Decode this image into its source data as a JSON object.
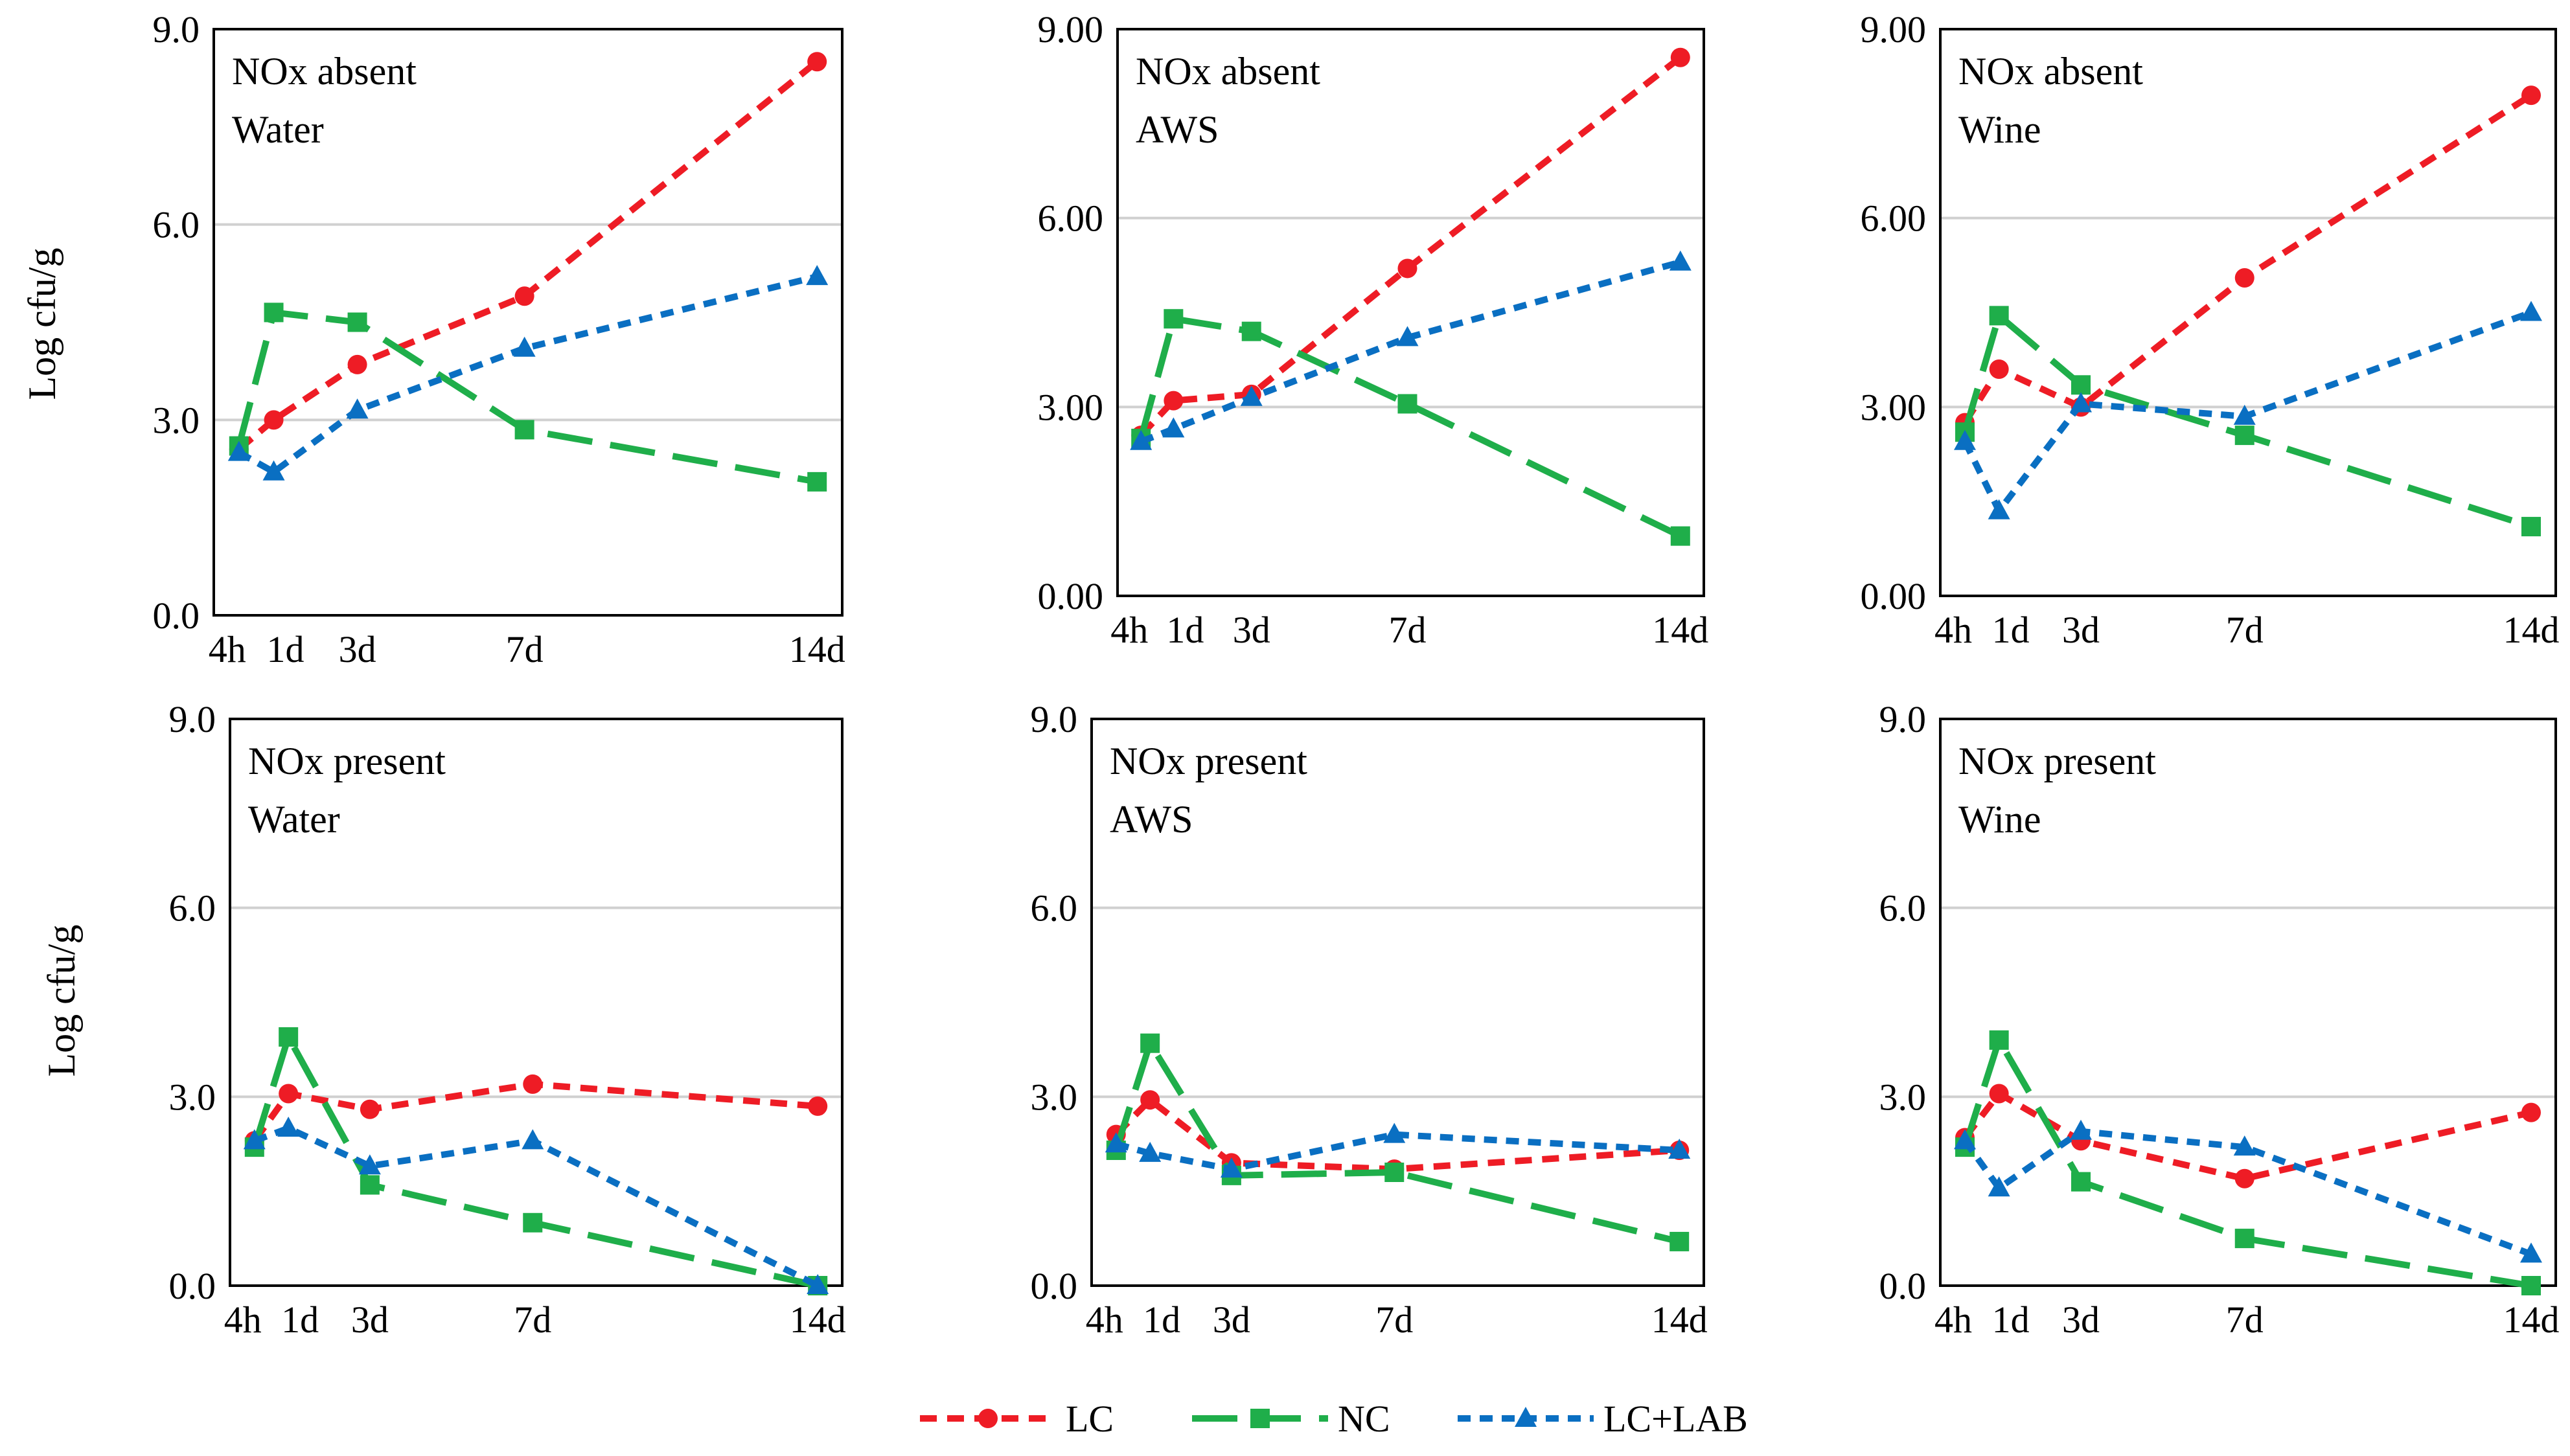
{
  "figure": {
    "y_axis_label": "Log cfu/g"
  },
  "legend": [
    {
      "name": "LC",
      "label": "LC",
      "color": "#ee1c25",
      "dash": "short",
      "marker": "circle"
    },
    {
      "name": "NC",
      "label": "NC",
      "color": "#1fae4a",
      "dash": "long",
      "marker": "square"
    },
    {
      "name": "LC+LAB",
      "label": "LC+LAB",
      "color": "#0a6fc2",
      "dash": "dot",
      "marker": "triangle"
    }
  ],
  "chart_data": [
    {
      "type": "line",
      "panel": "top-left",
      "annotation": [
        "NOx absent",
        "Water"
      ],
      "ylabel": "Log cfu/g",
      "ylim": [
        0,
        9
      ],
      "yticks": [
        "0.0",
        "3.0",
        "6.0",
        "9.0"
      ],
      "xtick_labels": [
        "4h",
        "1d",
        "3d",
        "7d",
        "14d"
      ],
      "x_hours": [
        4,
        24,
        72,
        168,
        336
      ],
      "series": [
        {
          "name": "LC",
          "x": [
            4,
            24,
            72,
            168,
            336
          ],
          "values": [
            2.55,
            3.0,
            3.85,
            4.9,
            8.5
          ]
        },
        {
          "name": "NC",
          "x": [
            4,
            24,
            72,
            168,
            336
          ],
          "values": [
            2.6,
            4.65,
            4.5,
            2.85,
            2.05
          ]
        },
        {
          "name": "LC+LAB",
          "x": [
            4,
            24,
            72,
            168,
            336
          ],
          "values": [
            2.5,
            2.2,
            3.15,
            4.1,
            5.2
          ]
        }
      ]
    },
    {
      "type": "line",
      "panel": "top-middle",
      "annotation": [
        "NOx absent",
        "AWS"
      ],
      "ylabel": "",
      "ylim": [
        0,
        9
      ],
      "yticks": [
        "0.00",
        "3.00",
        "6.00",
        "9.00"
      ],
      "xtick_labels": [
        "4h",
        "1d",
        "3d",
        "7d",
        "14d"
      ],
      "x_hours": [
        4,
        24,
        72,
        168,
        336
      ],
      "series": [
        {
          "name": "LC",
          "x": [
            4,
            24,
            72,
            168,
            336
          ],
          "values": [
            2.55,
            3.1,
            3.2,
            5.2,
            8.55
          ]
        },
        {
          "name": "NC",
          "x": [
            4,
            24,
            72,
            168,
            336
          ],
          "values": [
            2.5,
            4.4,
            4.2,
            3.05,
            0.95
          ]
        },
        {
          "name": "LC+LAB",
          "x": [
            4,
            24,
            72,
            168,
            336
          ],
          "values": [
            2.45,
            2.65,
            3.15,
            4.1,
            5.3
          ]
        }
      ]
    },
    {
      "type": "line",
      "panel": "top-right",
      "annotation": [
        "NOx absent",
        "Wine"
      ],
      "ylabel": "",
      "ylim": [
        0,
        9
      ],
      "yticks": [
        "0.00",
        "3.00",
        "6.00",
        "9.00"
      ],
      "xtick_labels": [
        "4h",
        "1d",
        "3d",
        "7d",
        "14d"
      ],
      "x_hours": [
        4,
        24,
        72,
        168,
        336
      ],
      "series": [
        {
          "name": "LC",
          "x": [
            4,
            24,
            72,
            168,
            336
          ],
          "values": [
            2.75,
            3.6,
            3.0,
            5.05,
            7.95
          ]
        },
        {
          "name": "NC",
          "x": [
            4,
            24,
            72,
            168,
            336
          ],
          "values": [
            2.6,
            4.45,
            3.35,
            2.55,
            1.1
          ]
        },
        {
          "name": "LC+LAB",
          "x": [
            4,
            24,
            72,
            168,
            336
          ],
          "values": [
            2.45,
            1.35,
            3.05,
            2.85,
            4.5
          ]
        }
      ]
    },
    {
      "type": "line",
      "panel": "bottom-left",
      "annotation": [
        "NOx present",
        "Water"
      ],
      "ylabel": "Log cfu/g",
      "ylim": [
        0,
        9
      ],
      "yticks": [
        "0.0",
        "3.0",
        "6.0",
        "9.0"
      ],
      "xtick_labels": [
        "4h",
        "1d",
        "3d",
        "7d",
        "14d"
      ],
      "x_hours": [
        4,
        24,
        72,
        168,
        336
      ],
      "series": [
        {
          "name": "LC",
          "x": [
            4,
            24,
            72,
            168,
            336
          ],
          "values": [
            2.3,
            3.05,
            2.8,
            3.2,
            2.85
          ]
        },
        {
          "name": "NC",
          "x": [
            4,
            24,
            72,
            168,
            336
          ],
          "values": [
            2.2,
            3.95,
            1.6,
            1.0,
            0.0
          ]
        },
        {
          "name": "LC+LAB",
          "x": [
            4,
            24,
            72,
            168,
            336
          ],
          "values": [
            2.3,
            2.5,
            1.9,
            2.3,
            0.0
          ]
        }
      ]
    },
    {
      "type": "line",
      "panel": "bottom-middle",
      "annotation": [
        "NOx present",
        "AWS"
      ],
      "ylabel": "",
      "ylim": [
        0,
        9
      ],
      "yticks": [
        "0.0",
        "3.0",
        "6.0",
        "9.0"
      ],
      "xtick_labels": [
        "4h",
        "1d",
        "3d",
        "7d",
        "14d"
      ],
      "x_hours": [
        4,
        24,
        72,
        168,
        336
      ],
      "series": [
        {
          "name": "LC",
          "x": [
            4,
            24,
            72,
            168,
            336
          ],
          "values": [
            2.4,
            2.95,
            1.95,
            1.85,
            2.15
          ]
        },
        {
          "name": "NC",
          "x": [
            4,
            24,
            72,
            168,
            336
          ],
          "values": [
            2.15,
            3.85,
            1.75,
            1.8,
            0.7
          ]
        },
        {
          "name": "LC+LAB",
          "x": [
            4,
            24,
            72,
            168,
            336
          ],
          "values": [
            2.25,
            2.1,
            1.85,
            2.4,
            2.15
          ]
        }
      ]
    },
    {
      "type": "line",
      "panel": "bottom-right",
      "annotation": [
        "NOx present",
        "Wine"
      ],
      "ylabel": "",
      "ylim": [
        0,
        9
      ],
      "yticks": [
        "0.0",
        "3.0",
        "6.0",
        "9.0"
      ],
      "xtick_labels": [
        "4h",
        "1d",
        "3d",
        "7d",
        "14d"
      ],
      "x_hours": [
        4,
        24,
        72,
        168,
        336
      ],
      "series": [
        {
          "name": "LC",
          "x": [
            4,
            24,
            72,
            168,
            336
          ],
          "values": [
            2.35,
            3.05,
            2.3,
            1.7,
            2.75
          ]
        },
        {
          "name": "NC",
          "x": [
            4,
            24,
            72,
            168,
            336
          ],
          "values": [
            2.2,
            3.9,
            1.65,
            0.75,
            0.0
          ]
        },
        {
          "name": "LC+LAB",
          "x": [
            4,
            24,
            72,
            168,
            336
          ],
          "values": [
            2.3,
            1.55,
            2.45,
            2.2,
            0.5
          ]
        }
      ]
    }
  ]
}
